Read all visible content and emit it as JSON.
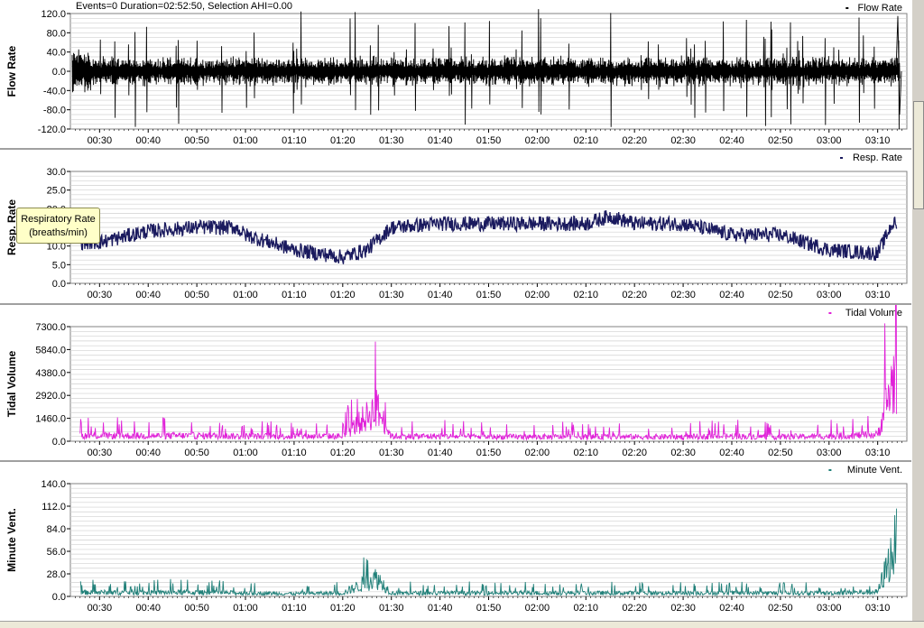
{
  "status_text": "Events=0 Duration=02:52:50, Selection AHI=0.00",
  "tooltip": {
    "line1": "Respiratory Rate",
    "line2": "(breaths/min)"
  },
  "time_ticks": [
    "00:30",
    "00:40",
    "00:50",
    "01:00",
    "01:10",
    "01:20",
    "01:30",
    "01:40",
    "01:50",
    "02:00",
    "02:10",
    "02:20",
    "02:30",
    "02:40",
    "02:50",
    "03:00",
    "03:10"
  ],
  "colors": {
    "flow": "#000000",
    "resp": "#1a1a5e",
    "tidal": "#e020d8",
    "minute": "#1f7f78",
    "grid": "#d0d0d0"
  },
  "chart_data": [
    {
      "type": "line",
      "id": "flow",
      "title": "Flow Rate",
      "ylabel": "Flow Rate",
      "ylim": [
        -120,
        120
      ],
      "yticks": [
        "120.0",
        "80.0",
        "40.0",
        "0.0",
        "-40.0",
        "-80.0",
        "-120.0"
      ],
      "series": [
        {
          "name": "Flow Rate",
          "note": "dense oscillating flow signal between about -80 and 80, peaks near 115 at end"
        }
      ]
    },
    {
      "type": "line",
      "id": "resp",
      "title": "Resp. Rate",
      "ylabel": "Resp. Rate",
      "ylim": [
        0,
        30
      ],
      "yticks": [
        "30.0",
        "25.0",
        "20.0",
        "15.0",
        "10.0",
        "5.0",
        "0.0"
      ],
      "x": [
        "00:30",
        "00:40",
        "00:50",
        "00:58",
        "01:00",
        "01:10",
        "01:20",
        "01:25",
        "01:30",
        "01:40",
        "01:50",
        "02:00",
        "02:10",
        "02:15",
        "02:20",
        "02:30",
        "02:40",
        "02:50",
        "03:00",
        "03:10",
        "03:13"
      ],
      "series": [
        {
          "name": "Resp. Rate",
          "values": [
            11,
            14,
            15,
            15,
            13,
            9,
            7,
            9,
            15,
            16,
            16,
            16,
            16,
            18,
            16,
            16,
            13,
            13,
            9,
            8,
            16
          ]
        }
      ]
    },
    {
      "type": "line",
      "id": "tidal",
      "title": "Tidal Volume",
      "ylabel": "Tidal Volume",
      "ylim": [
        0,
        7300
      ],
      "yticks": [
        "7300.0",
        "5840.0",
        "4380.0",
        "2920.0",
        "1460.0",
        "0.0"
      ],
      "x": [
        "00:30",
        "00:40",
        "00:50",
        "01:00",
        "01:10",
        "01:20",
        "01:27",
        "01:30",
        "01:40",
        "01:50",
        "02:00",
        "02:10",
        "02:20",
        "02:30",
        "02:40",
        "02:50",
        "03:00",
        "03:10",
        "03:14"
      ],
      "series": [
        {
          "name": "Tidal Volume",
          "values": [
            500,
            500,
            500,
            450,
            450,
            450,
            3000,
            450,
            450,
            400,
            400,
            400,
            400,
            400,
            450,
            400,
            450,
            600,
            6800
          ]
        }
      ]
    },
    {
      "type": "line",
      "id": "minute",
      "title": "Minute Vent.",
      "ylabel": "Minute Vent.",
      "ylim": [
        0,
        140
      ],
      "yticks": [
        "140.0",
        "112.0",
        "84.0",
        "56.0",
        "28.0",
        "0.0"
      ],
      "x": [
        "00:30",
        "00:40",
        "00:50",
        "01:00",
        "01:10",
        "01:20",
        "01:27",
        "01:30",
        "01:40",
        "01:50",
        "02:00",
        "02:10",
        "02:20",
        "02:30",
        "02:40",
        "02:50",
        "03:00",
        "03:10",
        "03:14"
      ],
      "series": [
        {
          "name": "Minute Vent.",
          "values": [
            7,
            7,
            7,
            6,
            5,
            6,
            33,
            6,
            6,
            6,
            6,
            6,
            6,
            6,
            6,
            6,
            6,
            8,
            100
          ]
        }
      ]
    }
  ]
}
